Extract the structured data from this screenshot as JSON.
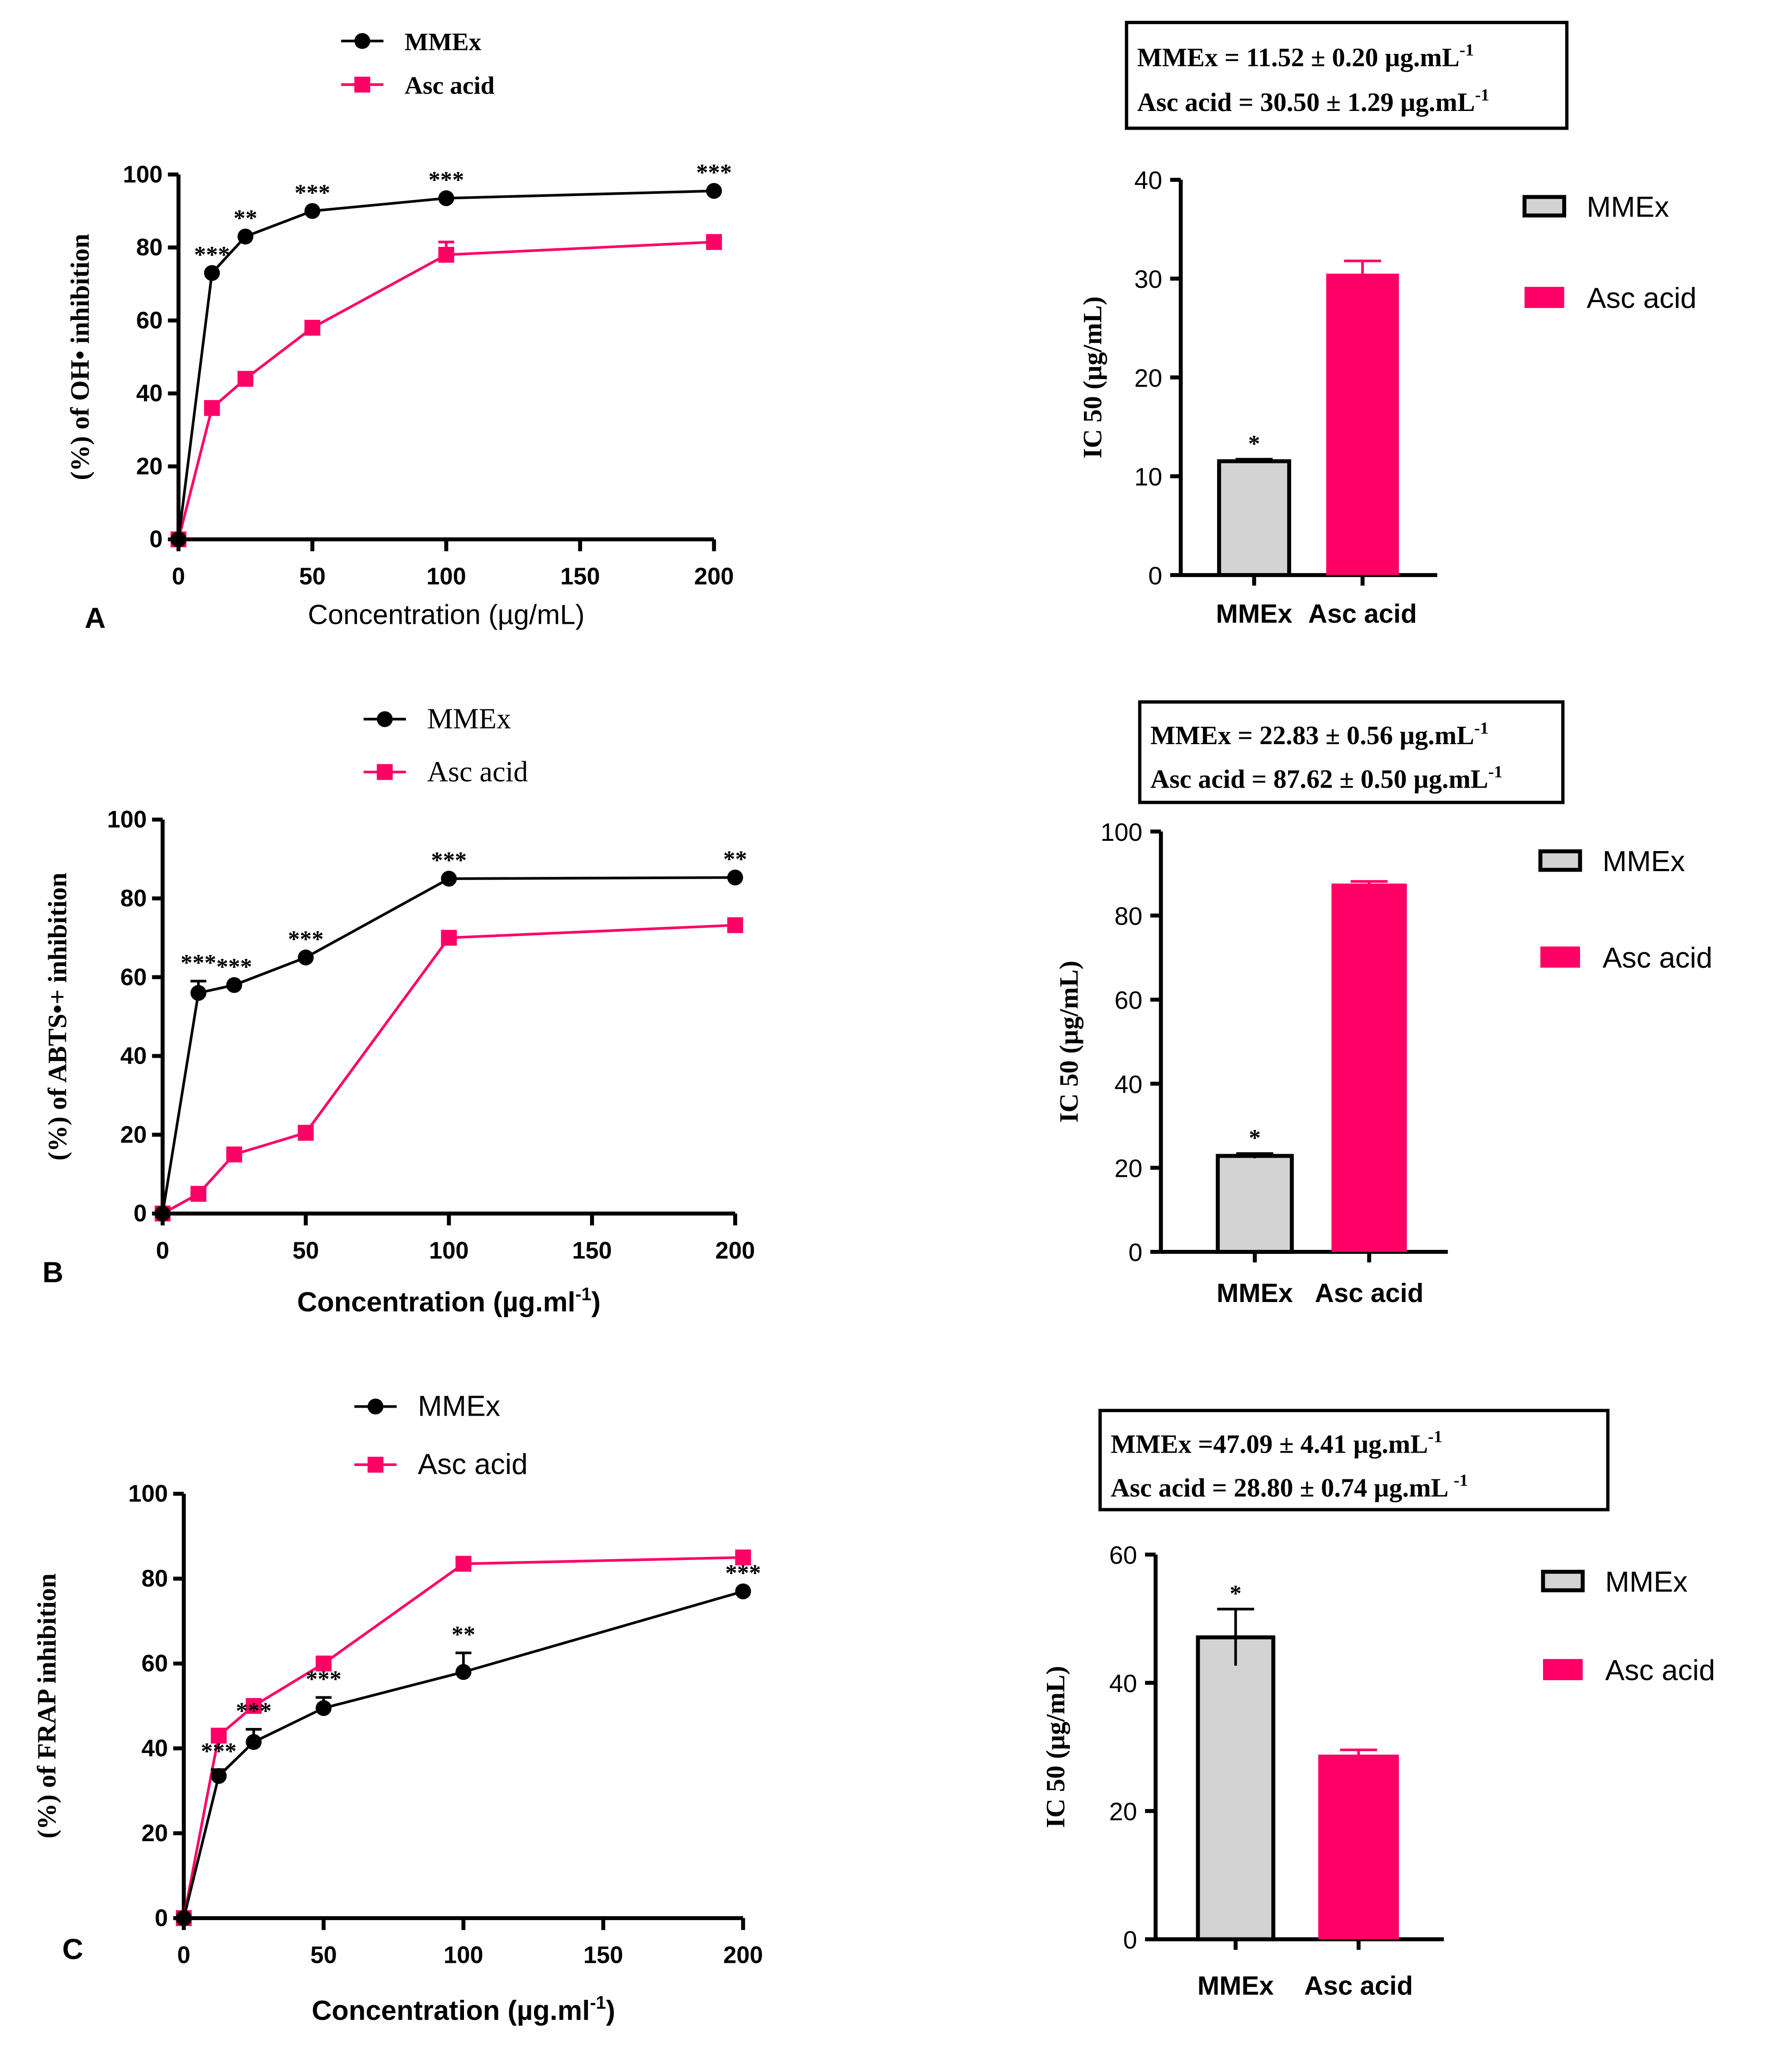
{
  "colors": {
    "mmex": "#000000",
    "asc": "#FF0066",
    "mmex_bar": "#D3D3D3"
  },
  "chart_data": [
    {
      "type": "line",
      "panel": "A",
      "ylabel": "(%) of OH• inhibition",
      "xlabel": {
        "main": "Concentration (µg/mL)",
        "sup": "",
        "tail": ""
      },
      "xlim": [
        0,
        200
      ],
      "ylim": [
        0,
        100
      ],
      "xticks": [
        0,
        50,
        100,
        150,
        200
      ],
      "yticks": [
        0,
        20,
        40,
        60,
        80,
        100
      ],
      "x": [
        0,
        12.5,
        25,
        50,
        100,
        200
      ],
      "legend": [
        "MMEx",
        "Asc acid"
      ],
      "series": [
        {
          "name": "MMEx",
          "values": [
            0,
            73,
            83,
            90,
            93.5,
            95.5
          ],
          "errors": [
            0,
            0,
            0,
            0,
            0,
            0
          ],
          "significance": [
            "",
            "***",
            "**",
            "***",
            "***",
            "***"
          ]
        },
        {
          "name": "Asc acid",
          "values": [
            0,
            36,
            44,
            58,
            78,
            81.5
          ],
          "errors": [
            0,
            0,
            0,
            0,
            3.5,
            0
          ]
        }
      ]
    },
    {
      "type": "bar",
      "panel": "A",
      "ylabel": "IC 50 (µg/mL)",
      "ylim": [
        0,
        40
      ],
      "yticks": [
        0,
        10,
        20,
        30,
        40
      ],
      "categories": [
        "MMEx",
        "Asc acid"
      ],
      "values": [
        11.52,
        30.5
      ],
      "errors": [
        0.2,
        1.29
      ],
      "significance": [
        "*",
        ""
      ],
      "legend": [
        "MMEx",
        "Asc acid"
      ],
      "annotation": [
        {
          "main": "MMEx = 11.52 ± 0.20 µg.mL",
          "sup": "-1"
        },
        {
          "main": "Asc acid = 30.50 ± 1.29 µg.mL",
          "sup": "-1"
        }
      ]
    },
    {
      "type": "line",
      "panel": "B",
      "ylabel": "(%) of ABTS•+ inhibition",
      "xlabel": {
        "main": "Concentration (µg.ml",
        "sup": "-1",
        "tail": ")"
      },
      "xlim": [
        0,
        200
      ],
      "ylim": [
        0,
        100
      ],
      "xticks": [
        0,
        50,
        100,
        150,
        200
      ],
      "yticks": [
        0,
        20,
        40,
        60,
        80,
        100
      ],
      "x": [
        0,
        12.5,
        25,
        50,
        100,
        200
      ],
      "legend": [
        "MMEx",
        "Asc acid"
      ],
      "series": [
        {
          "name": "MMEx",
          "values": [
            0,
            56,
            58,
            65,
            85,
            85.3
          ],
          "errors": [
            0,
            3,
            0,
            0,
            0,
            0
          ],
          "significance": [
            "",
            "***",
            "***",
            "***",
            "***",
            "**"
          ]
        },
        {
          "name": "Asc acid",
          "values": [
            0,
            5,
            15,
            20.5,
            70,
            73.2
          ],
          "errors": [
            0,
            0,
            0,
            0,
            0,
            0
          ]
        }
      ]
    },
    {
      "type": "bar",
      "panel": "B",
      "ylabel": "IC 50 (µg/mL)",
      "ylim": [
        0,
        100
      ],
      "yticks": [
        0,
        20,
        40,
        60,
        80,
        100
      ],
      "categories": [
        "MMEx",
        "Asc acid"
      ],
      "values": [
        22.83,
        87.62
      ],
      "errors": [
        0.56,
        0.5
      ],
      "significance": [
        "*",
        ""
      ],
      "legend": [
        "MMEx",
        "Asc acid"
      ],
      "annotation": [
        {
          "main": "MMEx = 22.83 ± 0.56 µg.mL",
          "sup": "-1"
        },
        {
          "main": "Asc acid = 87.62 ± 0.50 µg.mL",
          "sup": "-1"
        }
      ]
    },
    {
      "type": "line",
      "panel": "C",
      "ylabel": "(%) of FRAP inhibition",
      "xlabel": {
        "main": "Concentration (µg.ml",
        "sup": "-1",
        "tail": ")"
      },
      "xlim": [
        0,
        200
      ],
      "ylim": [
        0,
        100
      ],
      "xticks": [
        0,
        50,
        100,
        150,
        200
      ],
      "yticks": [
        0,
        20,
        40,
        60,
        80,
        100
      ],
      "x": [
        0,
        12.5,
        25,
        50,
        100,
        200
      ],
      "legend": [
        "MMEx",
        "Asc acid"
      ],
      "series": [
        {
          "name": "MMEx",
          "values": [
            0,
            33.5,
            41.5,
            49.5,
            58,
            77
          ],
          "errors": [
            0,
            1.5,
            3,
            2.5,
            4.5,
            0
          ],
          "significance": [
            "",
            "***",
            "***",
            "***",
            "**",
            "***"
          ]
        },
        {
          "name": "Asc acid",
          "values": [
            0,
            43,
            50,
            60,
            83.5,
            85
          ],
          "errors": [
            0,
            0,
            0,
            0,
            0,
            0
          ]
        }
      ]
    },
    {
      "type": "bar",
      "panel": "C",
      "ylabel": "IC 50 (µg/mL)",
      "ylim": [
        0,
        60
      ],
      "yticks": [
        0,
        20,
        40,
        60
      ],
      "categories": [
        "MMEx",
        "Asc acid"
      ],
      "values": [
        47.09,
        28.8
      ],
      "errors": [
        4.41,
        0.74
      ],
      "significance": [
        "*",
        ""
      ],
      "legend": [
        "MMEx",
        "Asc acid"
      ],
      "annotation": [
        {
          "main": "MMEx =47.09 ± 4.41 µg.mL",
          "sup": "-1"
        },
        {
          "main": "Asc acid = 28.80 ± 0.74 µg.mL ",
          "sup": "-1"
        }
      ]
    }
  ]
}
